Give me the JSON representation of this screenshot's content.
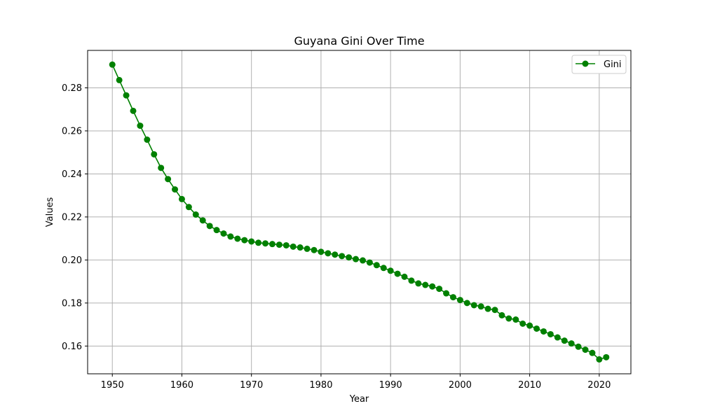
{
  "chart_data": {
    "type": "line",
    "title": "Guyana Gini Over Time",
    "xlabel": "Year",
    "ylabel": "Values",
    "xlim": [
      1946.45,
      2024.55
    ],
    "ylim": [
      0.1471,
      0.2974
    ],
    "x_ticks": [
      1950,
      1960,
      1970,
      1980,
      1990,
      2000,
      2010,
      2020
    ],
    "y_ticks": [
      0.16,
      0.18,
      0.2,
      0.22,
      0.24,
      0.26,
      0.28
    ],
    "y_tick_labels": [
      "0.16",
      "0.18",
      "0.20",
      "0.22",
      "0.24",
      "0.26",
      "0.28"
    ],
    "grid": true,
    "legend_position": "top-right",
    "x": [
      1950,
      1951,
      1952,
      1953,
      1954,
      1955,
      1956,
      1957,
      1958,
      1959,
      1960,
      1961,
      1962,
      1963,
      1964,
      1965,
      1966,
      1967,
      1968,
      1969,
      1970,
      1971,
      1972,
      1973,
      1974,
      1975,
      1976,
      1977,
      1978,
      1979,
      1980,
      1981,
      1982,
      1983,
      1984,
      1985,
      1986,
      1987,
      1988,
      1989,
      1990,
      1991,
      1992,
      1993,
      1994,
      1995,
      1996,
      1997,
      1998,
      1999,
      2000,
      2001,
      2002,
      2003,
      2004,
      2005,
      2006,
      2007,
      2008,
      2009,
      2010,
      2011,
      2012,
      2013,
      2014,
      2015,
      2016,
      2017,
      2018,
      2019,
      2020,
      2021
    ],
    "series": [
      {
        "name": "Gini",
        "color": "#008000",
        "marker": "circle",
        "values": [
          0.2908,
          0.2836,
          0.2765,
          0.2693,
          0.2624,
          0.2559,
          0.2491,
          0.2428,
          0.2376,
          0.2328,
          0.2283,
          0.2246,
          0.2211,
          0.2184,
          0.2158,
          0.2139,
          0.2123,
          0.2109,
          0.2099,
          0.2092,
          0.2086,
          0.208,
          0.2077,
          0.2074,
          0.2071,
          0.2068,
          0.2062,
          0.2058,
          0.2052,
          0.2046,
          0.2038,
          0.2031,
          0.2025,
          0.2018,
          0.2012,
          0.2004,
          0.1998,
          0.1988,
          0.1976,
          0.1963,
          0.195,
          0.1936,
          0.1922,
          0.1904,
          0.1891,
          0.1884,
          0.1877,
          0.1866,
          0.1845,
          0.1827,
          0.1814,
          0.18,
          0.179,
          0.1784,
          0.1773,
          0.1768,
          0.1743,
          0.1728,
          0.1723,
          0.1704,
          0.1695,
          0.1681,
          0.1668,
          0.1655,
          0.164,
          0.1625,
          0.1612,
          0.1597,
          0.1583,
          0.1568,
          0.1538,
          0.1548
        ]
      }
    ]
  }
}
